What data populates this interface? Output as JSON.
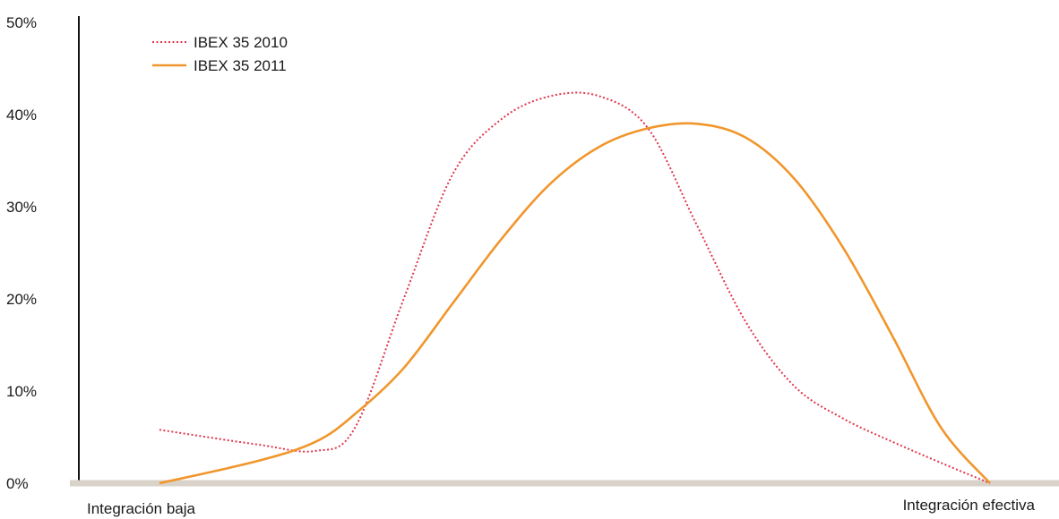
{
  "chart_data": {
    "type": "line",
    "title": "",
    "xlabel": "",
    "ylabel": "",
    "ylim": [
      0,
      50
    ],
    "y_ticks": [
      "0%",
      "10%",
      "20%",
      "30%",
      "40%",
      "50%"
    ],
    "x_labels": {
      "start": "Integración baja",
      "end": "Integración efectiva"
    },
    "x_range": [
      0,
      9
    ],
    "grid": false,
    "legend_position": "top-left",
    "series": [
      {
        "name": "IBEX 35 2010",
        "style": "dotted",
        "color": "#e0364f",
        "points": [
          [
            0,
            5.8
          ],
          [
            1,
            4.2
          ],
          [
            1.6,
            3.5
          ],
          [
            2,
            6
          ],
          [
            2.5,
            20
          ],
          [
            3,
            33.5
          ],
          [
            3.5,
            39.5
          ],
          [
            4,
            42
          ],
          [
            4.5,
            42
          ],
          [
            5,
            38.5
          ],
          [
            5.5,
            28
          ],
          [
            6,
            17.5
          ],
          [
            6.5,
            10.5
          ],
          [
            7,
            7
          ],
          [
            7.5,
            4.5
          ],
          [
            8,
            2.2
          ],
          [
            8.5,
            0
          ]
        ]
      },
      {
        "name": "IBEX 35 2011",
        "style": "solid",
        "color": "#f0962c",
        "points": [
          [
            0,
            0
          ],
          [
            1,
            2.4
          ],
          [
            1.6,
            4.5
          ],
          [
            2,
            7.5
          ],
          [
            2.5,
            12.5
          ],
          [
            3,
            19.5
          ],
          [
            3.5,
            26.5
          ],
          [
            4,
            32.5
          ],
          [
            4.5,
            36.5
          ],
          [
            5,
            38.5
          ],
          [
            5.5,
            39
          ],
          [
            6,
            37.5
          ],
          [
            6.5,
            33
          ],
          [
            7,
            25.5
          ],
          [
            7.5,
            16
          ],
          [
            8,
            6
          ],
          [
            8.5,
            0
          ]
        ]
      }
    ],
    "colors": {
      "axis": "#111111",
      "baseline": "#d9d2c9"
    }
  }
}
